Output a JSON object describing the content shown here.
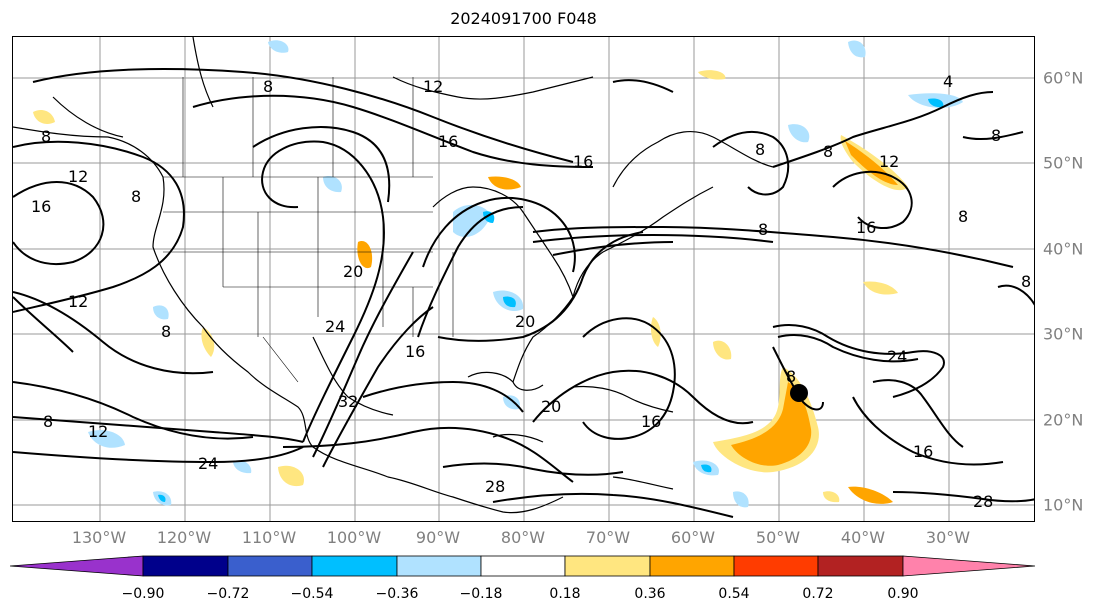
{
  "title": "2024091700 F048",
  "lon_labels": [
    "130°W",
    "120°W",
    "110°W",
    "100°W",
    "90°W",
    "80°W",
    "70°W",
    "60°W",
    "50°W",
    "40°W",
    "30°W"
  ],
  "lat_labels": [
    "60°N",
    "50°N",
    "40°N",
    "30°N",
    "20°N",
    "10°N"
  ],
  "contour_labels": [
    "8",
    "12",
    "16",
    "20",
    "24",
    "28",
    "32",
    "4"
  ],
  "colorbar": {
    "ticks": [
      "−0.90",
      "−0.72",
      "−0.54",
      "−0.36",
      "−0.18",
      "0.18",
      "0.36",
      "0.54",
      "0.72",
      "0.90"
    ],
    "colors": [
      "#9932cc",
      "#00008b",
      "#3a5fcd",
      "#00bfff",
      "#b0e2ff",
      "#ffffff",
      "#ffe680",
      "#ffa500",
      "#ff3c00",
      "#b22222",
      "#ff82ab"
    ]
  },
  "storm_marker": {
    "lon": "~48°W",
    "lat": "~23°N"
  }
}
